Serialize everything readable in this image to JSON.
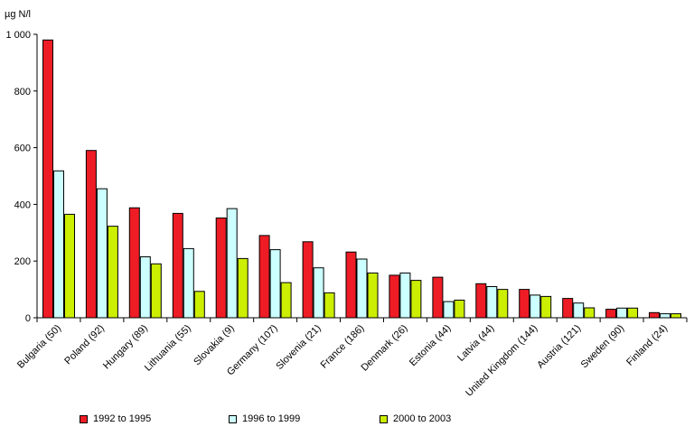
{
  "chart_data": {
    "type": "bar",
    "ylabel": "µg N/l",
    "ylim": [
      0,
      1000
    ],
    "yticks": [
      0,
      200,
      400,
      600,
      800,
      1000
    ],
    "ytick_labels": [
      "0",
      "200",
      "400",
      "600",
      "800",
      "1 000"
    ],
    "grid": false,
    "legend_position": "bottom",
    "categories": [
      "Bulgaria (50)",
      "Poland (92)",
      "Hungary (89)",
      "Lithuania (55)",
      "Slovakia (9)",
      "Germany (107)",
      "Slovenia (21)",
      "France (186)",
      "Denmark (26)",
      "Estonia (44)",
      "Latvia (44)",
      "United Kingdom (144)",
      "Austria (121)",
      "Sweden (90)",
      "Finland (24)"
    ],
    "series": [
      {
        "name": "1992 to 1995",
        "color": "#ee1c25",
        "values": [
          980,
          590,
          388,
          368,
          352,
          290,
          268,
          232,
          150,
          143,
          120,
          100,
          68,
          30,
          18
        ]
      },
      {
        "name": "1996 to 1999",
        "color": "#ccffff",
        "values": [
          518,
          455,
          215,
          244,
          385,
          240,
          176,
          207,
          158,
          57,
          110,
          80,
          52,
          34,
          14
        ]
      },
      {
        "name": "2000 to 2003",
        "color": "#ccee00",
        "values": [
          365,
          323,
          190,
          93,
          209,
          124,
          88,
          158,
          132,
          62,
          100,
          75,
          35,
          34,
          14
        ]
      }
    ]
  }
}
